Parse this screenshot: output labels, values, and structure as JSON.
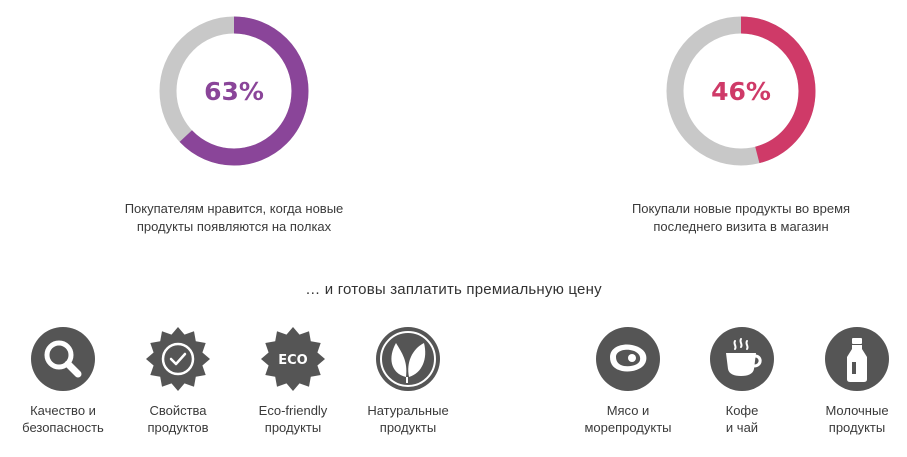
{
  "stats": [
    {
      "percent_label": "63%",
      "value": 0.63,
      "color": "#8a4599",
      "caption_line1": "Покупателям нравится, когда новые",
      "caption_line2": "продукты появляются на полках"
    },
    {
      "percent_label": "46%",
      "value": 0.46,
      "color": "#cf3a68",
      "caption_line1": "Покупали новые продукты во время",
      "caption_line2": "последнего визита в магазин"
    }
  ],
  "ring_track_color": "#c8c8c8",
  "icon_color": "#555555",
  "subheading": "… и готовы заплатить премиальную цену",
  "categories": [
    {
      "icon": "magnifier-icon",
      "line1": "Качество и",
      "line2": "безопасность"
    },
    {
      "icon": "check-badge-icon",
      "line1": "Свойства",
      "line2": "продуктов"
    },
    {
      "icon": "eco-badge-icon",
      "icon_text": "ECO",
      "line1": "Eco-friendly",
      "line2": "продукты"
    },
    {
      "icon": "leaves-icon",
      "line1": "Натуральные",
      "line2": "продукты"
    },
    {
      "icon": "steak-icon",
      "line1": "Мясо и",
      "line2": "морепродукты"
    },
    {
      "icon": "coffee-cup-icon",
      "line1": "Кофе",
      "line2": "и чай"
    },
    {
      "icon": "milk-bottle-icon",
      "line1": "Молочные",
      "line2": "продукты"
    }
  ]
}
